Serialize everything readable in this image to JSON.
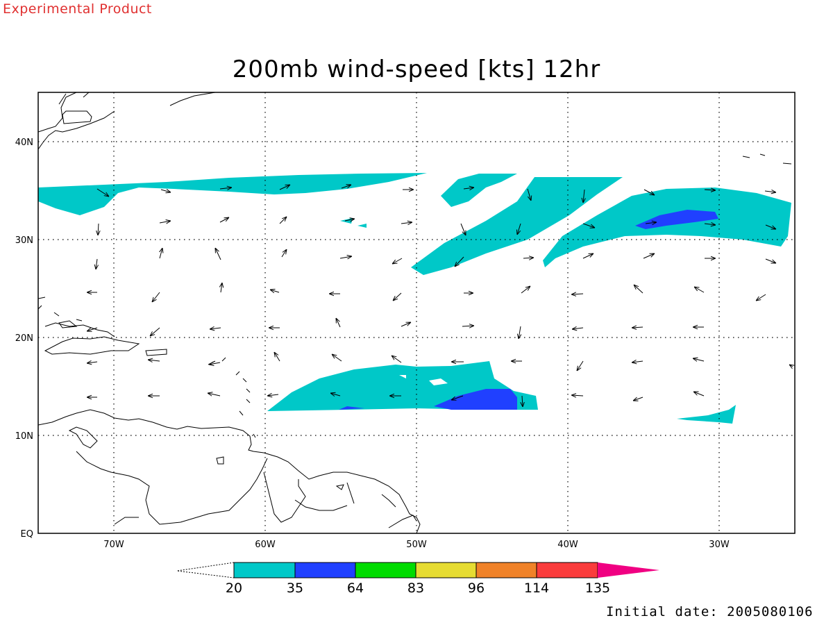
{
  "header": {
    "experimental_label": "Experimental Product",
    "title": "200mb wind-speed [kts] 12hr",
    "initial_date": "Initial date: 2005080106"
  },
  "map": {
    "lon_range": [
      -75,
      -25
    ],
    "lat_range": [
      0,
      45
    ],
    "lon_gridlines": [
      -70,
      -60,
      -50,
      -40,
      -30
    ],
    "lat_gridlines": [
      10,
      20,
      30,
      40
    ],
    "lon_labels": [
      "70W",
      "60W",
      "50W",
      "40W",
      "30W"
    ],
    "lat_labels": [
      "EQ",
      "10N",
      "20N",
      "30N",
      "40N"
    ],
    "shading_colors": {
      "20-35": "#00c8c8",
      "35-64": "#2040ff"
    }
  },
  "colorbar": {
    "levels": [
      "20",
      "35",
      "64",
      "83",
      "96",
      "114",
      "135"
    ],
    "colors": [
      "#00c8c8",
      "#2040ff",
      "#00dc00",
      "#e6dc32",
      "#f08228",
      "#fa3c3c",
      "#f00082"
    ]
  }
}
